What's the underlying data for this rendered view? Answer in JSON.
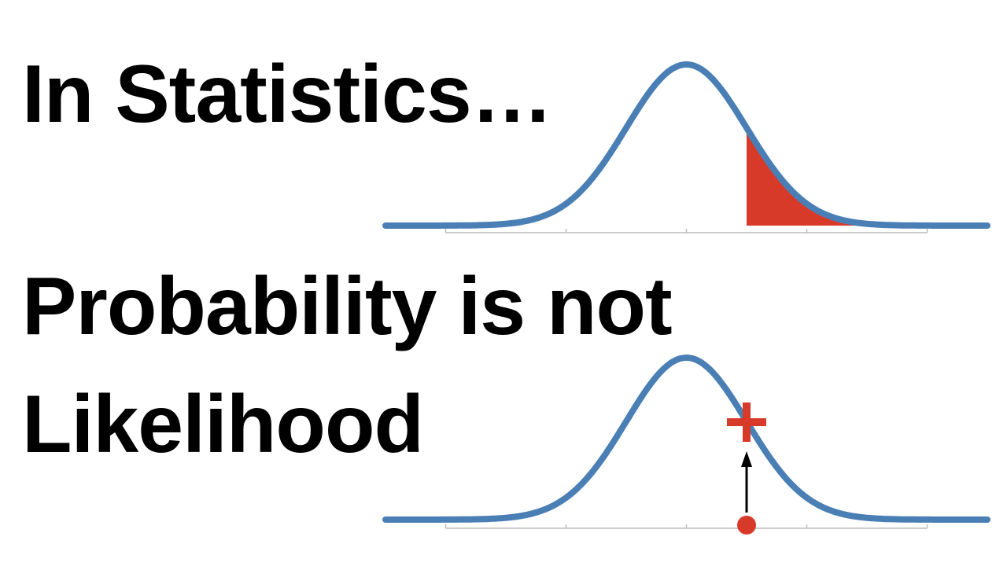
{
  "headline": {
    "line1": "In Statistics…",
    "line2": "Probability is not",
    "line3": "Likelihood"
  },
  "colors": {
    "curve": "#4a7fb5",
    "highlight": "#d83a2a",
    "axis": "#bbbbbb",
    "arrow": "#000000"
  },
  "chart_data": [
    {
      "type": "line",
      "description_kind": "normal-distribution-probability",
      "distribution": {
        "mean": 0,
        "sd": 1
      },
      "xlim": [
        -5,
        5
      ],
      "ticks": [
        -4,
        -2,
        0,
        2,
        4
      ],
      "tick_labels": [],
      "shaded_region": {
        "from": 1,
        "to": 5
      }
    },
    {
      "type": "line",
      "description_kind": "normal-distribution-likelihood",
      "distribution": {
        "mean": 0,
        "sd": 1
      },
      "xlim": [
        -5,
        5
      ],
      "ticks": [
        -4,
        -2,
        0,
        2,
        4
      ],
      "tick_labels": [],
      "observation": 1,
      "marker": "plus",
      "arrow": "up"
    }
  ]
}
